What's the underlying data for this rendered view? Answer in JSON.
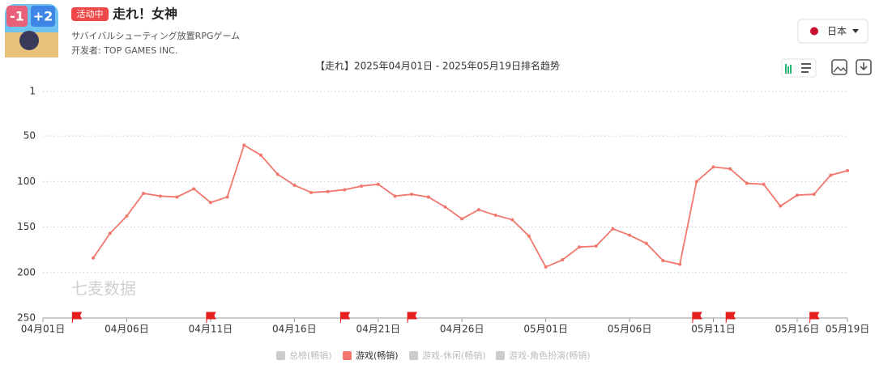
{
  "header": {
    "icon_badges": [
      "-1",
      "+2"
    ],
    "status_badge": "活动中",
    "title": "走れ！女神",
    "subtitle": "サバイバルシューティング放置RPGゲーム",
    "developer": "开发者: TOP GAMES INC.",
    "country": "日本"
  },
  "chart_data": {
    "type": "line",
    "title": "【走れ】2025年04月01日 - 2025年05月19日排名趋势",
    "watermark": "七麦数据",
    "categories": [
      "04月01日",
      null,
      null,
      null,
      null,
      "04月06日",
      null,
      null,
      null,
      null,
      "04月11日",
      null,
      null,
      null,
      null,
      "04月16日",
      null,
      null,
      null,
      null,
      "04月21日",
      null,
      null,
      null,
      null,
      "04月26日",
      null,
      null,
      null,
      null,
      "05月01日",
      null,
      null,
      null,
      null,
      "05月06日",
      null,
      null,
      null,
      null,
      "05月11日",
      null,
      null,
      null,
      null,
      "05月16日",
      null,
      null,
      "05月19日"
    ],
    "series": [
      {
        "name": "游戏(畅销)",
        "color": "#f2776d",
        "values": [
          null,
          null,
          null,
          184,
          157,
          138,
          113,
          116,
          117,
          108,
          123,
          117,
          60,
          71,
          92,
          104,
          112,
          111,
          109,
          105,
          103,
          116,
          114,
          117,
          128,
          141,
          131,
          137,
          142,
          160,
          194,
          186,
          172,
          171,
          152,
          159,
          168,
          187,
          191,
          100,
          84,
          86,
          102,
          103,
          127,
          115,
          114,
          93,
          88
        ]
      }
    ],
    "inactive_series": [
      {
        "name": "总榜(畅销)",
        "color": "#cccccc"
      },
      {
        "name": "游戏-休闲(畅销)",
        "color": "#cccccc"
      },
      {
        "name": "游戏-角色扮演(畅销)",
        "color": "#cccccc"
      }
    ],
    "event_flags": [
      2,
      10,
      18,
      22,
      39,
      41,
      46
    ],
    "ylim": [
      1,
      250
    ],
    "yticks": [
      1,
      50,
      100,
      150,
      200,
      250
    ],
    "y_inverted": true,
    "grid": true
  }
}
